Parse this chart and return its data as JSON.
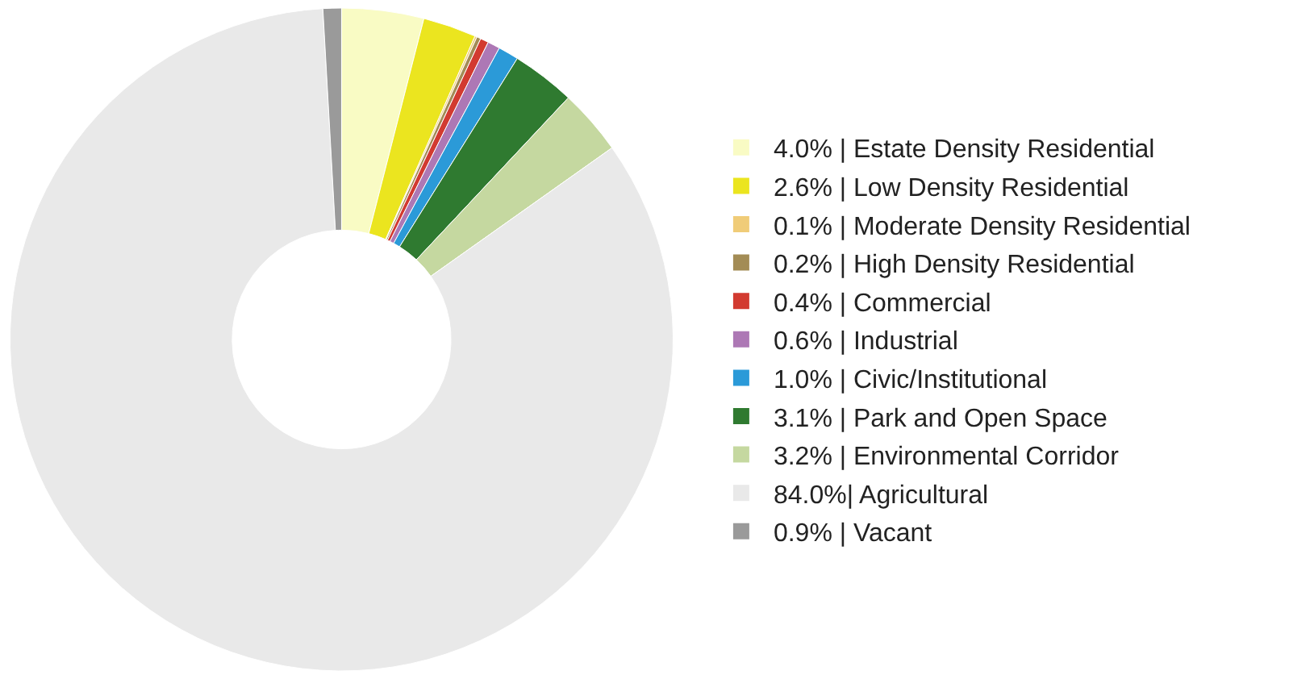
{
  "chart_data": {
    "type": "donut",
    "categories": [
      "4.0% | Estate Density Residential",
      "2.6% | Low Density Residential",
      "0.1% | Moderate Density Residential",
      "0.2% | High Density Residential",
      "0.4% | Commercial",
      "0.6% | Industrial",
      "1.0% | Civic/Institutional",
      "3.1% | Park and Open Space",
      "3.2% | Environmental Corridor",
      "84.0%| Agricultural",
      "0.9% | Vacant"
    ],
    "values": [
      4.0,
      2.6,
      0.1,
      0.2,
      0.4,
      0.6,
      1.0,
      3.1,
      3.2,
      84.0,
      0.9
    ],
    "colors": [
      "#f9fbc4",
      "#ebe51f",
      "#f0cc78",
      "#a38c55",
      "#d23a30",
      "#ad78b5",
      "#2b9ad8",
      "#2f7a30",
      "#c5d8a0",
      "#e9e9e9",
      "#9a9a9a"
    ],
    "legend": "right"
  }
}
